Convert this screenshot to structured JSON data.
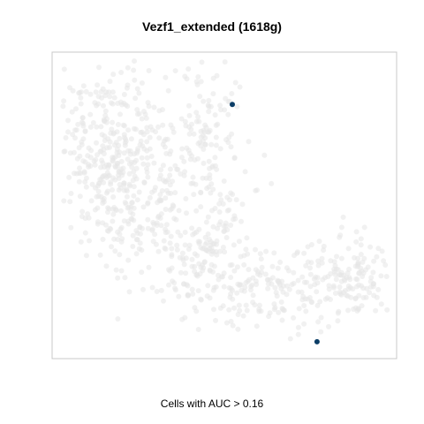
{
  "chart_data": {
    "type": "scatter",
    "title": "Vezf1_extended (1618g)",
    "xlabel": "Cells with AUC > 0.16",
    "ylabel": "",
    "xlim": [
      0,
      100
    ],
    "ylim": [
      0,
      100
    ],
    "axes_visible": false,
    "grid": false,
    "legend": "none",
    "colors": {
      "background_cells": "#e6e6e6",
      "highlighted_cells": "#0b3d66",
      "panel_border": "#c8c8c8"
    },
    "series": [
      {
        "values_note": "",
        "points": [
          {
            "x": 52.3,
            "y": 82.9
          },
          {
            "x": 76.9,
            "y": 5.5
          }
        ]
      }
    ]
  }
}
